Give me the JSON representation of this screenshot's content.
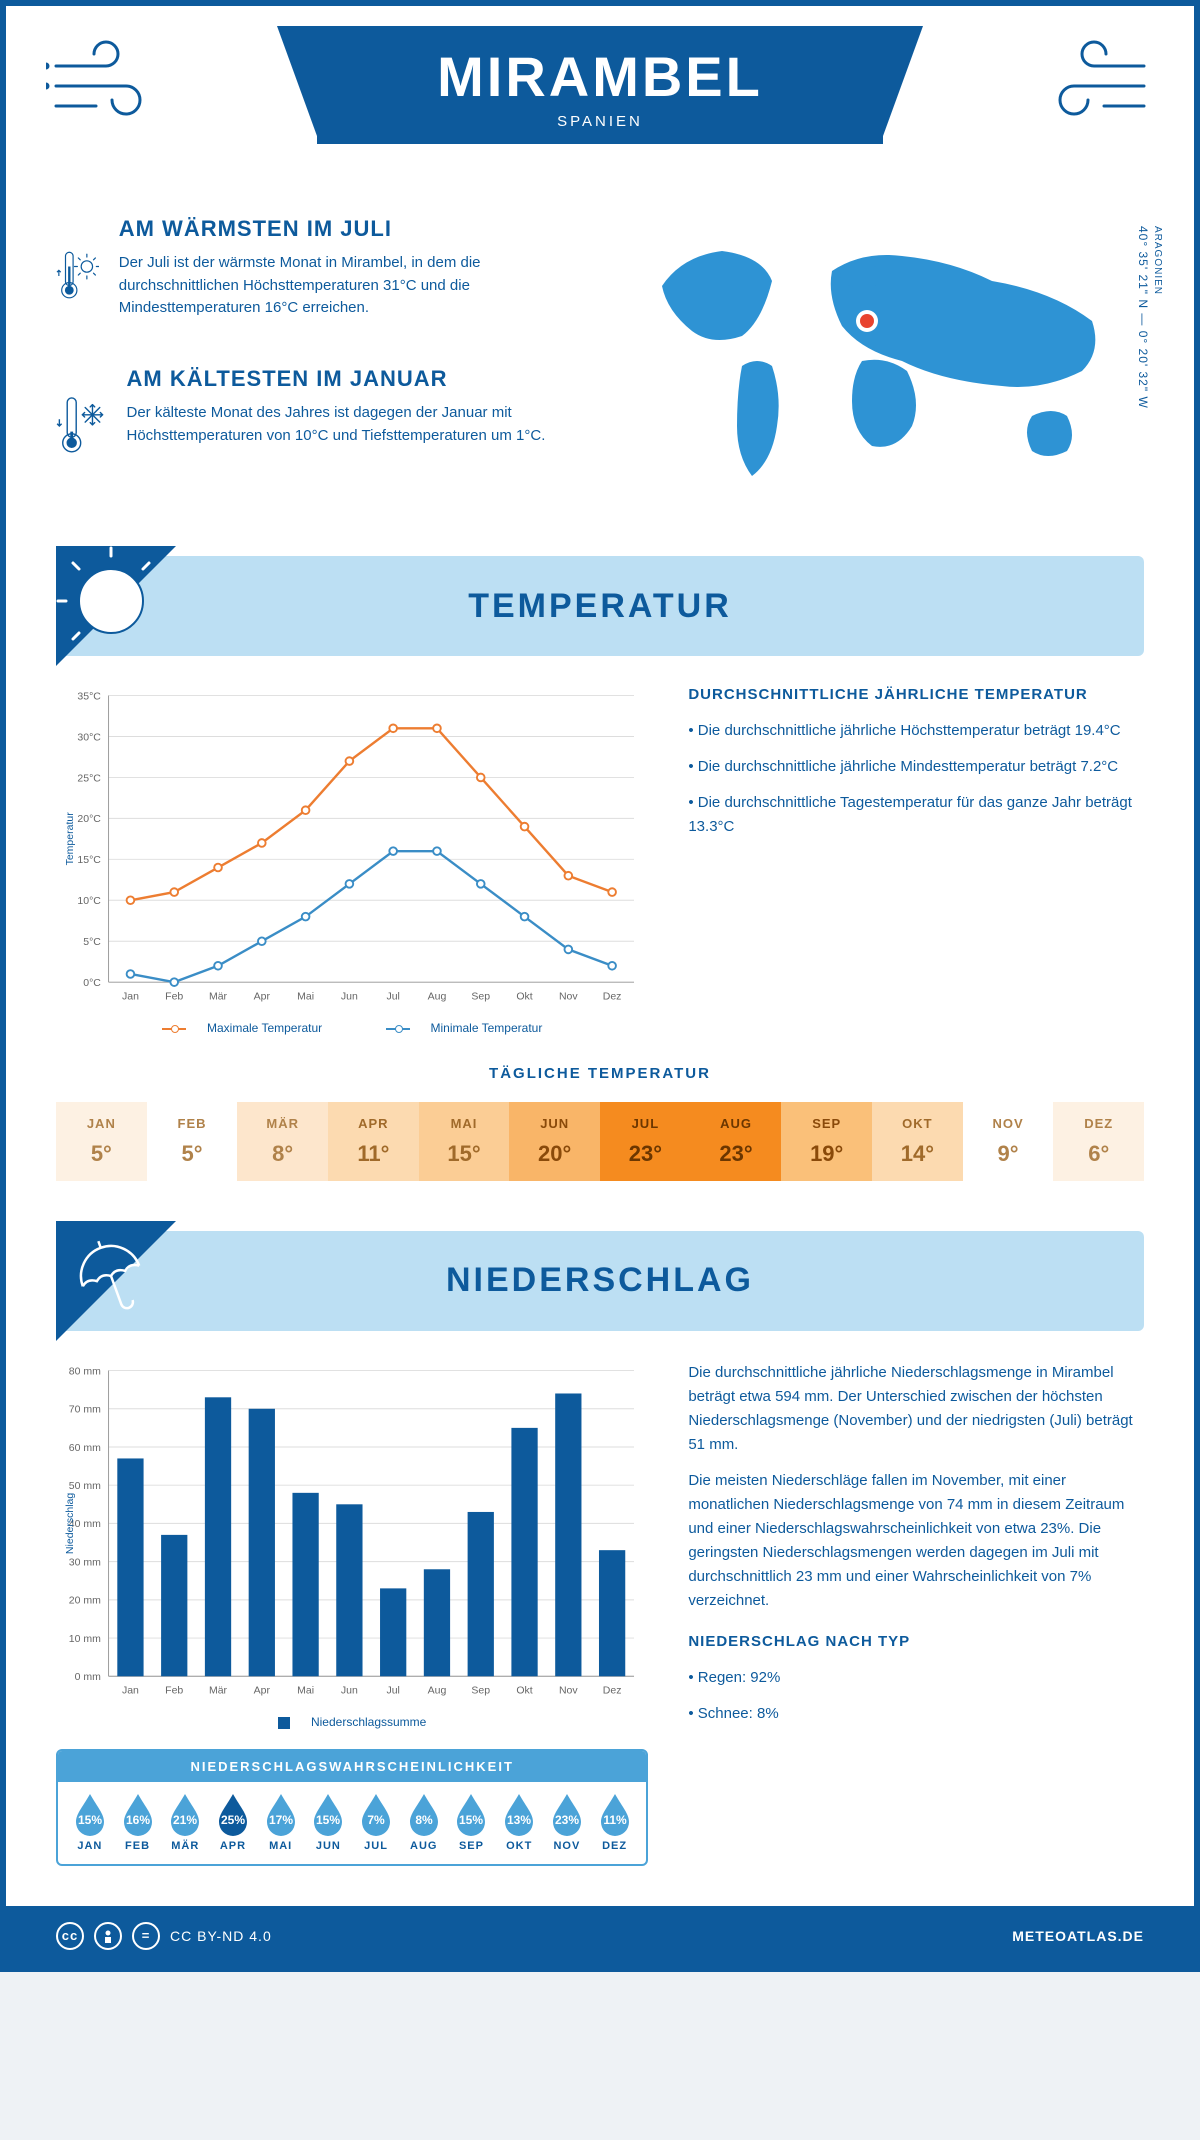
{
  "colors": {
    "primary": "#0d5a9c",
    "lightBlue": "#bcdff3",
    "midBlue": "#4ba3d8",
    "orange": "#ed7d31",
    "lineBlue": "#3a8dc6",
    "grid": "#dddddd",
    "axis": "#999999"
  },
  "header": {
    "title": "MIRAMBEL",
    "subtitle": "SPANIEN"
  },
  "location": {
    "region": "ARAGONIEN",
    "coords": "40° 35' 21\" N — 0° 20' 32\" W"
  },
  "intro": {
    "warm": {
      "title": "AM WÄRMSTEN IM JULI",
      "text": "Der Juli ist der wärmste Monat in Mirambel, in dem die durchschnittlichen Höchsttemperaturen 31°C und die Mindesttemperaturen 16°C erreichen."
    },
    "cold": {
      "title": "AM KÄLTESTEN IM JANUAR",
      "text": "Der kälteste Monat des Jahres ist dagegen der Januar mit Höchsttemperaturen von 10°C und Tiefsttemperaturen um 1°C."
    }
  },
  "months": [
    "Jan",
    "Feb",
    "Mär",
    "Apr",
    "Mai",
    "Jun",
    "Jul",
    "Aug",
    "Sep",
    "Okt",
    "Nov",
    "Dez"
  ],
  "monthsUpper": [
    "JAN",
    "FEB",
    "MÄR",
    "APR",
    "MAI",
    "JUN",
    "JUL",
    "AUG",
    "SEP",
    "OKT",
    "NOV",
    "DEZ"
  ],
  "temperature": {
    "sectionTitle": "TEMPERATUR",
    "chart": {
      "ylabel": "Temperatur",
      "ymin": 0,
      "ymax": 35,
      "ystep": 5,
      "maxSeries": {
        "label": "Maximale Temperatur",
        "color": "#ed7d31",
        "values": [
          10,
          11,
          14,
          17,
          21,
          27,
          31,
          31,
          25,
          19,
          13,
          11
        ]
      },
      "minSeries": {
        "label": "Minimale Temperatur",
        "color": "#3a8dc6",
        "values": [
          1,
          0,
          2,
          5,
          8,
          12,
          16,
          16,
          12,
          8,
          4,
          2
        ]
      }
    },
    "annual": {
      "title": "DURCHSCHNITTLICHE JÄHRLICHE TEMPERATUR",
      "items": [
        "Die durchschnittliche jährliche Höchsttemperatur beträgt 19.4°C",
        "Die durchschnittliche jährliche Mindesttemperatur beträgt 7.2°C",
        "Die durchschnittliche Tagestemperatur für das ganze Jahr beträgt 13.3°C"
      ]
    },
    "daily": {
      "title": "TÄGLICHE TEMPERATUR",
      "values": [
        5,
        5,
        8,
        11,
        15,
        20,
        23,
        23,
        19,
        14,
        9,
        6
      ],
      "bgColors": [
        "#fdf1e3",
        "#ffffff",
        "#fde6cc",
        "#fcdab0",
        "#fbcd95",
        "#f9b568",
        "#f58b1f",
        "#f58b1f",
        "#fac079",
        "#fcdab0",
        "#ffffff",
        "#fdf1e3"
      ],
      "textColors": [
        "#b0824a",
        "#b0824a",
        "#b0824a",
        "#a06a2a",
        "#a06a2a",
        "#8a4a0a",
        "#6b3600",
        "#6b3600",
        "#8a4a0a",
        "#a06a2a",
        "#b0824a",
        "#b0824a"
      ]
    }
  },
  "precip": {
    "sectionTitle": "NIEDERSCHLAG",
    "chart": {
      "ylabel": "Niederschlag",
      "ymin": 0,
      "ymax": 80,
      "ystep": 10,
      "barColor": "#0d5a9c",
      "legendLabel": "Niederschlagssumme",
      "values": [
        57,
        37,
        73,
        70,
        48,
        45,
        23,
        28,
        43,
        65,
        74,
        33
      ]
    },
    "text1": "Die durchschnittliche jährliche Niederschlagsmenge in Mirambel beträgt etwa 594 mm. Der Unterschied zwischen der höchsten Niederschlagsmenge (November) und der niedrigsten (Juli) beträgt 51 mm.",
    "text2": "Die meisten Niederschläge fallen im November, mit einer monatlichen Niederschlagsmenge von 74 mm in diesem Zeitraum und einer Niederschlagswahrscheinlichkeit von etwa 23%. Die geringsten Niederschlagsmengen werden dagegen im Juli mit durchschnittlich 23 mm und einer Wahrscheinlichkeit von 7% verzeichnet.",
    "byType": {
      "title": "NIEDERSCHLAG NACH TYP",
      "items": [
        "Regen: 92%",
        "Schnee: 8%"
      ]
    },
    "prob": {
      "title": "NIEDERSCHLAGSWAHRSCHEINLICHKEIT",
      "values": [
        15,
        16,
        21,
        25,
        17,
        15,
        7,
        8,
        15,
        13,
        23,
        11
      ],
      "normalColor": "#4ba3d8",
      "maxColor": "#0d5a9c"
    }
  },
  "footer": {
    "license": "CC BY-ND 4.0",
    "site": "METEOATLAS.DE"
  }
}
